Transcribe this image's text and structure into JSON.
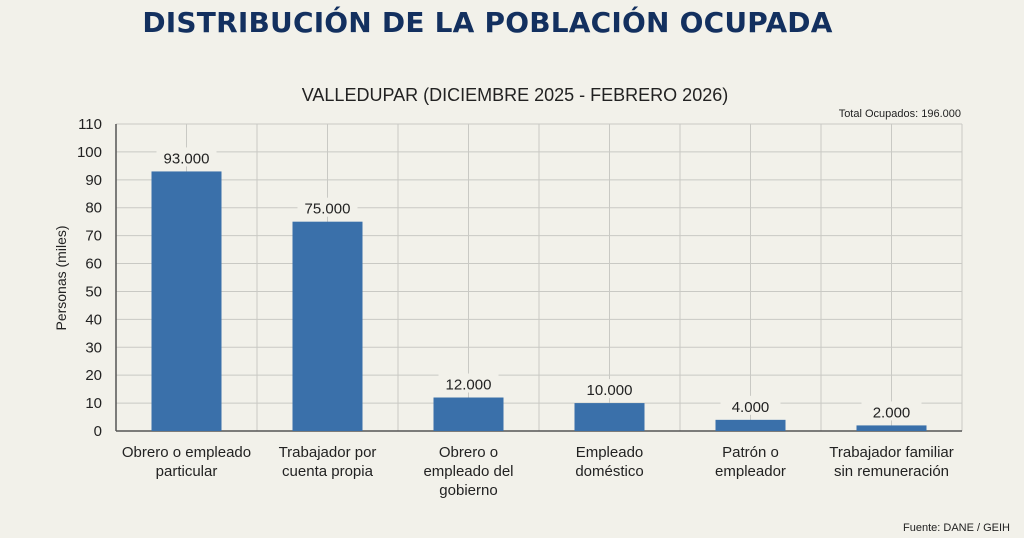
{
  "chart_data": {
    "type": "bar",
    "title": "DISTRIBUCIÓN DE LA POBLACIÓN OCUPADA",
    "subtitle": "VALLEDUPAR (DICIEMBRE 2025 - FEBRERO 2026)",
    "annotation": "Total Ocupados: 196.000",
    "source": "Fuente: DANE / GEIH",
    "xlabel": "",
    "ylabel": "Personas (miles)",
    "ylim": [
      0,
      110
    ],
    "yticks": [
      0,
      10,
      20,
      30,
      40,
      50,
      60,
      70,
      80,
      90,
      100,
      110
    ],
    "grid": true,
    "categories": [
      [
        "Obrero o empleado",
        "particular"
      ],
      [
        "Trabajador por",
        "cuenta propia"
      ],
      [
        "Obrero o",
        "empleado del",
        "gobierno"
      ],
      [
        "Empleado",
        "doméstico"
      ],
      [
        "Patrón o",
        "empleador"
      ],
      [
        "Trabajador familiar",
        "sin remuneración"
      ]
    ],
    "values": [
      93,
      75,
      12,
      10,
      4,
      2
    ],
    "value_labels": [
      "93.000",
      "75.000",
      "12.000",
      "10.000",
      "4.000",
      "2.000"
    ],
    "colors": {
      "bar": "#3a70aa",
      "title": "#13305f",
      "grid": "#c9c9c4",
      "axis": "#555555"
    }
  }
}
